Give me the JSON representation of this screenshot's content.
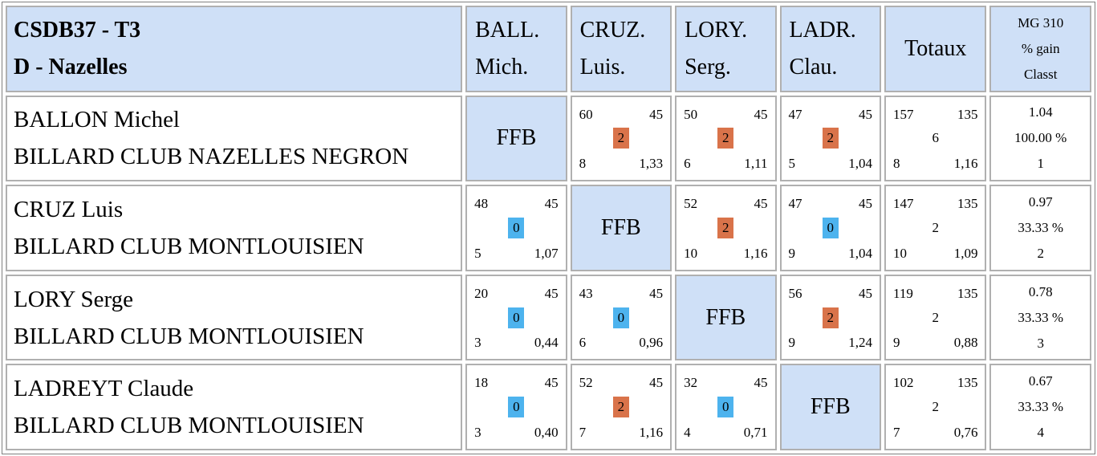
{
  "header": {
    "title_line1": "CSDB37 - T3",
    "title_line2": "D - Nazelles",
    "columns": [
      {
        "l1": "BALL.",
        "l2": "Mich."
      },
      {
        "l1": "CRUZ.",
        "l2": "Luis."
      },
      {
        "l1": "LORY.",
        "l2": "Serg."
      },
      {
        "l1": "LADR.",
        "l2": "Clau."
      }
    ],
    "totaux": "Totaux",
    "mg_l1": "MG 310",
    "mg_l2": "% gain",
    "mg_l3": "Classt"
  },
  "ffb_label": "FFB",
  "rows": [
    {
      "name": "BALLON Michel",
      "club": "BILLARD CLUB NAZELLES NEGRON",
      "matches": [
        null,
        {
          "points": "60",
          "target": "45",
          "result": "2",
          "outcome": "win",
          "innings": "8",
          "avg": "1,33"
        },
        {
          "points": "50",
          "target": "45",
          "result": "2",
          "outcome": "win",
          "innings": "6",
          "avg": "1,11"
        },
        {
          "points": "47",
          "target": "45",
          "result": "2",
          "outcome": "win",
          "innings": "5",
          "avg": "1,04"
        }
      ],
      "totals": {
        "points": "157",
        "target": "135",
        "score": "6",
        "innings": "8",
        "avg": "1,16"
      },
      "summary": {
        "mg": "1.04",
        "pct": "100.00 %",
        "rank": "1"
      }
    },
    {
      "name": "CRUZ Luis",
      "club": "BILLARD CLUB MONTLOUISIEN",
      "matches": [
        {
          "points": "48",
          "target": "45",
          "result": "0",
          "outcome": "loss",
          "innings": "5",
          "avg": "1,07"
        },
        null,
        {
          "points": "52",
          "target": "45",
          "result": "2",
          "outcome": "win",
          "innings": "10",
          "avg": "1,16"
        },
        {
          "points": "47",
          "target": "45",
          "result": "0",
          "outcome": "loss",
          "innings": "9",
          "avg": "1,04"
        }
      ],
      "totals": {
        "points": "147",
        "target": "135",
        "score": "2",
        "innings": "10",
        "avg": "1,09"
      },
      "summary": {
        "mg": "0.97",
        "pct": "33.33 %",
        "rank": "2"
      }
    },
    {
      "name": "LORY Serge",
      "club": "BILLARD CLUB MONTLOUISIEN",
      "matches": [
        {
          "points": "20",
          "target": "45",
          "result": "0",
          "outcome": "loss",
          "innings": "3",
          "avg": "0,44"
        },
        {
          "points": "43",
          "target": "45",
          "result": "0",
          "outcome": "loss",
          "innings": "6",
          "avg": "0,96"
        },
        null,
        {
          "points": "56",
          "target": "45",
          "result": "2",
          "outcome": "win",
          "innings": "9",
          "avg": "1,24"
        }
      ],
      "totals": {
        "points": "119",
        "target": "135",
        "score": "2",
        "innings": "9",
        "avg": "0,88"
      },
      "summary": {
        "mg": "0.78",
        "pct": "33.33 %",
        "rank": "3"
      }
    },
    {
      "name": "LADREYT Claude",
      "club": "BILLARD CLUB MONTLOUISIEN",
      "matches": [
        {
          "points": "18",
          "target": "45",
          "result": "0",
          "outcome": "loss",
          "innings": "3",
          "avg": "0,40"
        },
        {
          "points": "52",
          "target": "45",
          "result": "2",
          "outcome": "win",
          "innings": "7",
          "avg": "1,16"
        },
        {
          "points": "32",
          "target": "45",
          "result": "0",
          "outcome": "loss",
          "innings": "4",
          "avg": "0,71"
        },
        null
      ],
      "totals": {
        "points": "102",
        "target": "135",
        "score": "2",
        "innings": "7",
        "avg": "0,76"
      },
      "summary": {
        "mg": "0.67",
        "pct": "33.33 %",
        "rank": "4"
      }
    }
  ],
  "colors": {
    "header_bg": "#cfe0f7",
    "win": "#d9734a",
    "loss": "#4db3ee"
  }
}
